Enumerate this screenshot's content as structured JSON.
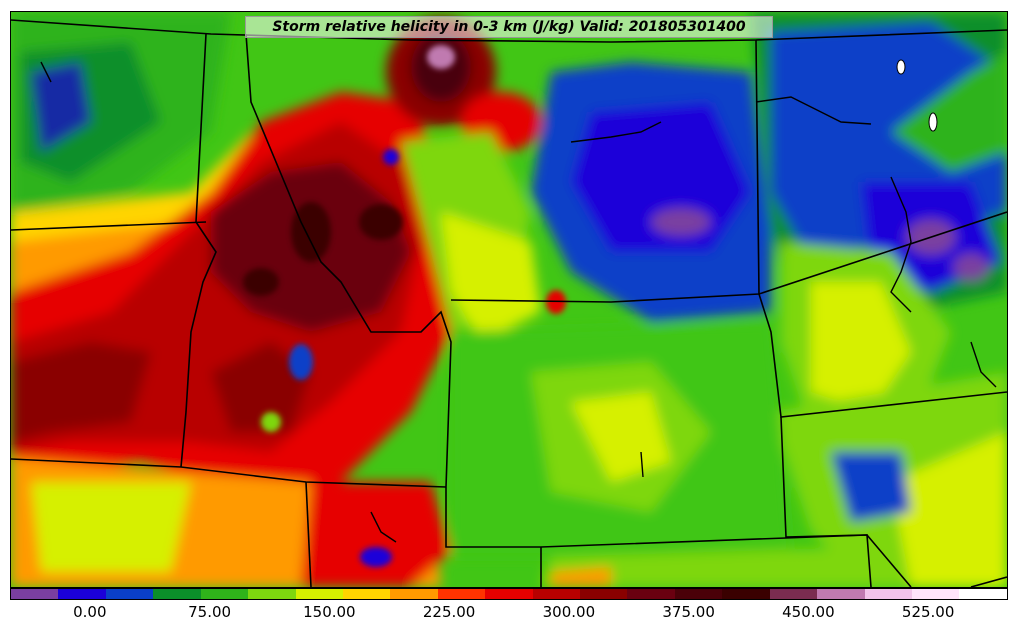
{
  "title": "Storm relative helicity in 0-3 km (J/kg) Valid: 201805301400",
  "colorbar": {
    "colors": [
      "#7a3fa0",
      "#1b00d9",
      "#0a3fc8",
      "#0b8f2a",
      "#2fb31a",
      "#7ed70f",
      "#d6f000",
      "#ffd400",
      "#ff9a00",
      "#ff3300",
      "#e60000",
      "#b80000",
      "#8a0000",
      "#6a0010",
      "#4a0008",
      "#3a0000",
      "#7a2c50",
      "#c07ab0",
      "#f2c4ea",
      "#ffe4fb",
      "#ffffff"
    ],
    "tick_labels": [
      {
        "label": "0.00",
        "value": 0
      },
      {
        "label": "75.00",
        "value": 75
      },
      {
        "label": "150.00",
        "value": 150
      },
      {
        "label": "225.00",
        "value": 225
      },
      {
        "label": "300.00",
        "value": 300
      },
      {
        "label": "375.00",
        "value": 375
      },
      {
        "label": "450.00",
        "value": 450
      },
      {
        "label": "525.00",
        "value": 525
      }
    ],
    "min": -50,
    "max": 575
  },
  "map": {
    "region": "Western United States",
    "boundary_color": "#000000"
  }
}
